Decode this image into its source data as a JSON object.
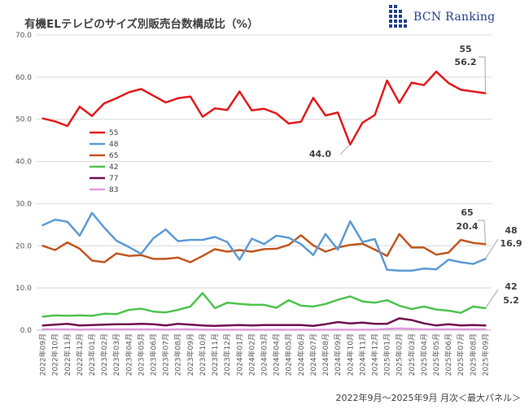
{
  "header": {
    "title": "有機ELテレビのサイズ別販売台数構成比（%）",
    "brand": "BCN Ranking"
  },
  "footnote": "2022年9月～2025年9月 月次＜最大パネル＞",
  "chart_data": {
    "type": "line",
    "title": "有機ELテレビのサイズ別販売台数構成比（%）",
    "ylim": [
      0,
      70
    ],
    "yticks": [
      "0.0",
      "10.0",
      "20.0",
      "30.0",
      "40.0",
      "50.0",
      "60.0",
      "70.0"
    ],
    "grid": true,
    "legend_position": "left",
    "x": [
      "2022年09月",
      "2022年10月",
      "2022年11月",
      "2022年12月",
      "2023年01月",
      "2023年02月",
      "2023年03月",
      "2023年04月",
      "2023年05月",
      "2023年06月",
      "2023年07月",
      "2023年08月",
      "2023年09月",
      "2023年10月",
      "2023年11月",
      "2023年12月",
      "2024年01月",
      "2024年02月",
      "2024年03月",
      "2024年04月",
      "2024年05月",
      "2024年06月",
      "2024年07月",
      "2024年08月",
      "2024年09月",
      "2024年10月",
      "2024年11月",
      "2024年12月",
      "2025年01月",
      "2025年02月",
      "2025年03月",
      "2025年04月",
      "2025年05月",
      "2025年06月",
      "2025年07月",
      "2025年08月",
      "2025年09月"
    ],
    "series": [
      {
        "name": "55",
        "color": "#e31a1c",
        "width": 2.5,
        "values": [
          50.2,
          49.5,
          48.4,
          53.0,
          50.8,
          53.8,
          55.0,
          56.4,
          57.2,
          55.6,
          54.0,
          55.0,
          55.4,
          50.6,
          52.6,
          52.2,
          56.6,
          52.1,
          52.5,
          51.4,
          49.0,
          49.4,
          55.1,
          50.9,
          51.6,
          44.0,
          49.2,
          51.0,
          59.2,
          53.9,
          58.7,
          58.1,
          61.3,
          58.6,
          57.0,
          56.6,
          56.2
        ]
      },
      {
        "name": "48",
        "color": "#5b9bd5",
        "width": 2.5,
        "values": [
          24.9,
          26.2,
          25.7,
          22.4,
          27.8,
          24.3,
          21.2,
          19.7,
          18.1,
          21.8,
          23.9,
          21.1,
          21.4,
          21.4,
          22.1,
          20.9,
          16.7,
          21.7,
          20.4,
          22.4,
          21.9,
          20.4,
          17.8,
          22.8,
          19.1,
          25.8,
          20.9,
          21.6,
          14.3,
          14.1,
          14.1,
          14.6,
          14.4,
          16.7,
          16.1,
          15.7,
          16.9
        ]
      },
      {
        "name": "65",
        "color": "#c0561f",
        "width": 2.5,
        "values": [
          20.0,
          19.0,
          20.8,
          19.3,
          16.5,
          16.1,
          18.2,
          17.6,
          17.8,
          16.9,
          16.9,
          17.2,
          16.1,
          17.6,
          19.2,
          18.6,
          19.0,
          18.6,
          19.2,
          19.3,
          20.2,
          22.5,
          20.1,
          18.6,
          19.6,
          20.2,
          20.5,
          19.1,
          17.6,
          22.8,
          19.6,
          19.6,
          17.9,
          18.4,
          21.4,
          20.7,
          20.4
        ]
      },
      {
        "name": "42",
        "color": "#4fc34f",
        "width": 2.5,
        "values": [
          3.2,
          3.5,
          3.4,
          3.5,
          3.4,
          3.9,
          3.8,
          4.8,
          5.1,
          4.4,
          4.2,
          4.8,
          5.6,
          8.8,
          5.2,
          6.5,
          6.2,
          6.0,
          6.0,
          5.3,
          7.1,
          5.8,
          5.6,
          6.2,
          7.2,
          8.0,
          6.8,
          6.5,
          7.1,
          5.8,
          5.0,
          5.6,
          4.9,
          4.6,
          4.1,
          5.6,
          5.2
        ]
      },
      {
        "name": "77",
        "color": "#70104f",
        "width": 2.5,
        "values": [
          1.1,
          1.3,
          1.5,
          1.1,
          1.2,
          1.3,
          1.4,
          1.4,
          1.5,
          1.4,
          1.1,
          1.5,
          1.3,
          1.1,
          1.0,
          1.1,
          1.2,
          1.1,
          1.2,
          1.2,
          1.2,
          1.2,
          1.0,
          1.4,
          1.9,
          1.6,
          1.8,
          1.5,
          1.5,
          2.8,
          2.4,
          1.6,
          1.1,
          1.4,
          1.1,
          1.2,
          1.1
        ]
      },
      {
        "name": "83",
        "color": "#e39be0",
        "width": 2.5,
        "values": [
          0.2,
          0.2,
          0.2,
          0.1,
          0.2,
          0.2,
          0.2,
          0.2,
          0.2,
          0.2,
          0.1,
          0.2,
          0.2,
          0.1,
          0.1,
          0.1,
          0.1,
          0.1,
          0.1,
          0.1,
          0.1,
          0.1,
          0.1,
          0.1,
          0.1,
          0.1,
          0.1,
          0.1,
          0.3,
          0.4,
          0.3,
          0.2,
          0.2,
          0.2,
          0.2,
          0.2,
          0.2
        ]
      }
    ],
    "annotations": [
      {
        "label": "55",
        "series": "55",
        "at_index": 36
      },
      {
        "label": "56.2",
        "series": "55",
        "at_index": 36
      },
      {
        "label": "44.0",
        "series": "55",
        "at_index": 25
      },
      {
        "label": "65",
        "series": "65",
        "at_index": 36
      },
      {
        "label": "20.4",
        "series": "65",
        "at_index": 36
      },
      {
        "label": "48",
        "series": "48",
        "at_index": 36
      },
      {
        "label": "16.9",
        "series": "48",
        "at_index": 36
      },
      {
        "label": "42",
        "series": "42",
        "at_index": 36
      },
      {
        "label": "5.2",
        "series": "42",
        "at_index": 36
      }
    ]
  }
}
